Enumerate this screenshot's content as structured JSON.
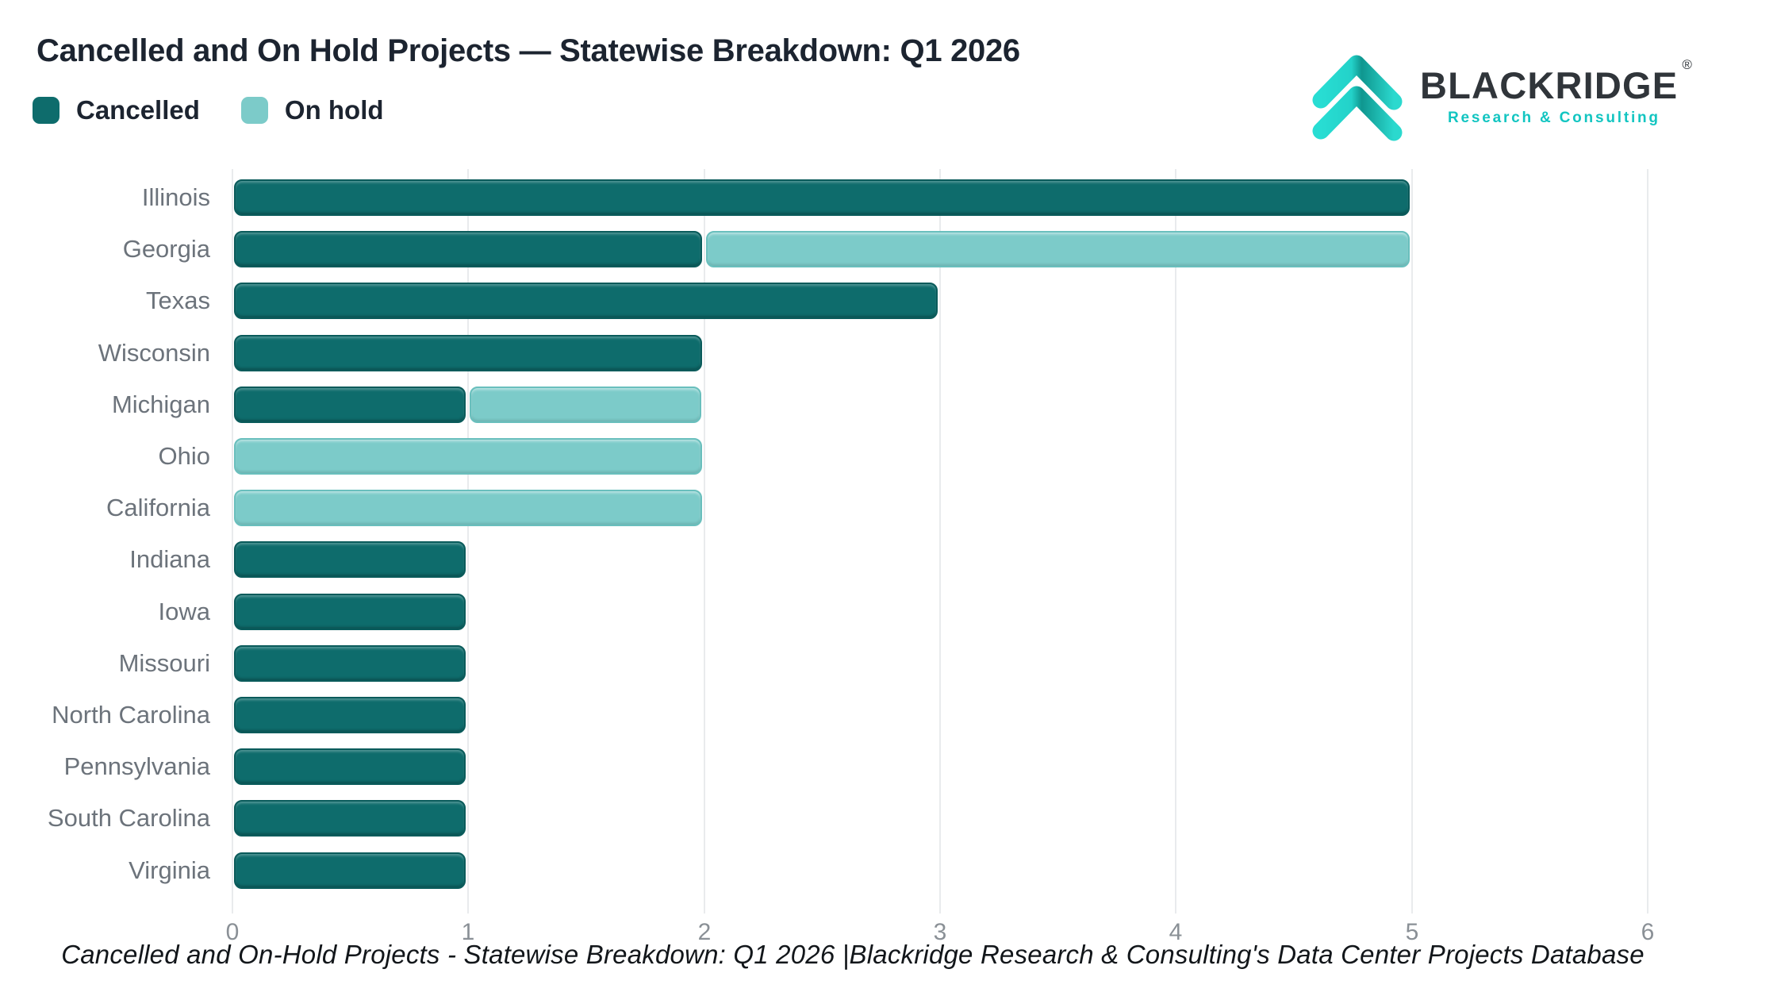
{
  "header": {
    "title": "Cancelled and On Hold Projects — Statewise Breakdown: Q1 2026"
  },
  "legend": [
    {
      "label": "Cancelled",
      "color": "#0E6C6C"
    },
    {
      "label": "On hold",
      "color": "#7CCBC9"
    }
  ],
  "logo": {
    "brand": "BLACKRIDGE",
    "registered": "®",
    "tagline": "Research & Consulting",
    "accent_color": "#12C5C1",
    "brand_color": "#30353A"
  },
  "axis": {
    "x_ticks": [
      "0",
      "1",
      "2",
      "3",
      "4",
      "5",
      "6"
    ]
  },
  "footer": {
    "caption": "Cancelled and On-Hold Projects - Statewise Breakdown: Q1 2026 |Blackridge Research & Consulting's Data Center Projects Database"
  },
  "chart_data": {
    "type": "bar",
    "orientation": "horizontal",
    "stacked": true,
    "title": "Cancelled and On Hold Projects — Statewise Breakdown: Q1 2026",
    "xlabel": "",
    "ylabel": "",
    "xlim": [
      0,
      6
    ],
    "grid": "vertical",
    "legend_position": "top-left",
    "categories": [
      "Illinois",
      "Georgia",
      "Texas",
      "Wisconsin",
      "Michigan",
      "Ohio",
      "California",
      "Indiana",
      "Iowa",
      "Missouri",
      "North Carolina",
      "Pennsylvania",
      "South Carolina",
      "Virginia"
    ],
    "series": [
      {
        "name": "Cancelled",
        "color": "#0E6C6C",
        "values": [
          5,
          2,
          3,
          2,
          1,
          0,
          0,
          1,
          1,
          1,
          1,
          1,
          1,
          1
        ]
      },
      {
        "name": "On hold",
        "color": "#7CCBC9",
        "values": [
          0,
          3,
          0,
          0,
          1,
          2,
          2,
          0,
          0,
          0,
          0,
          0,
          0,
          0
        ]
      }
    ]
  }
}
